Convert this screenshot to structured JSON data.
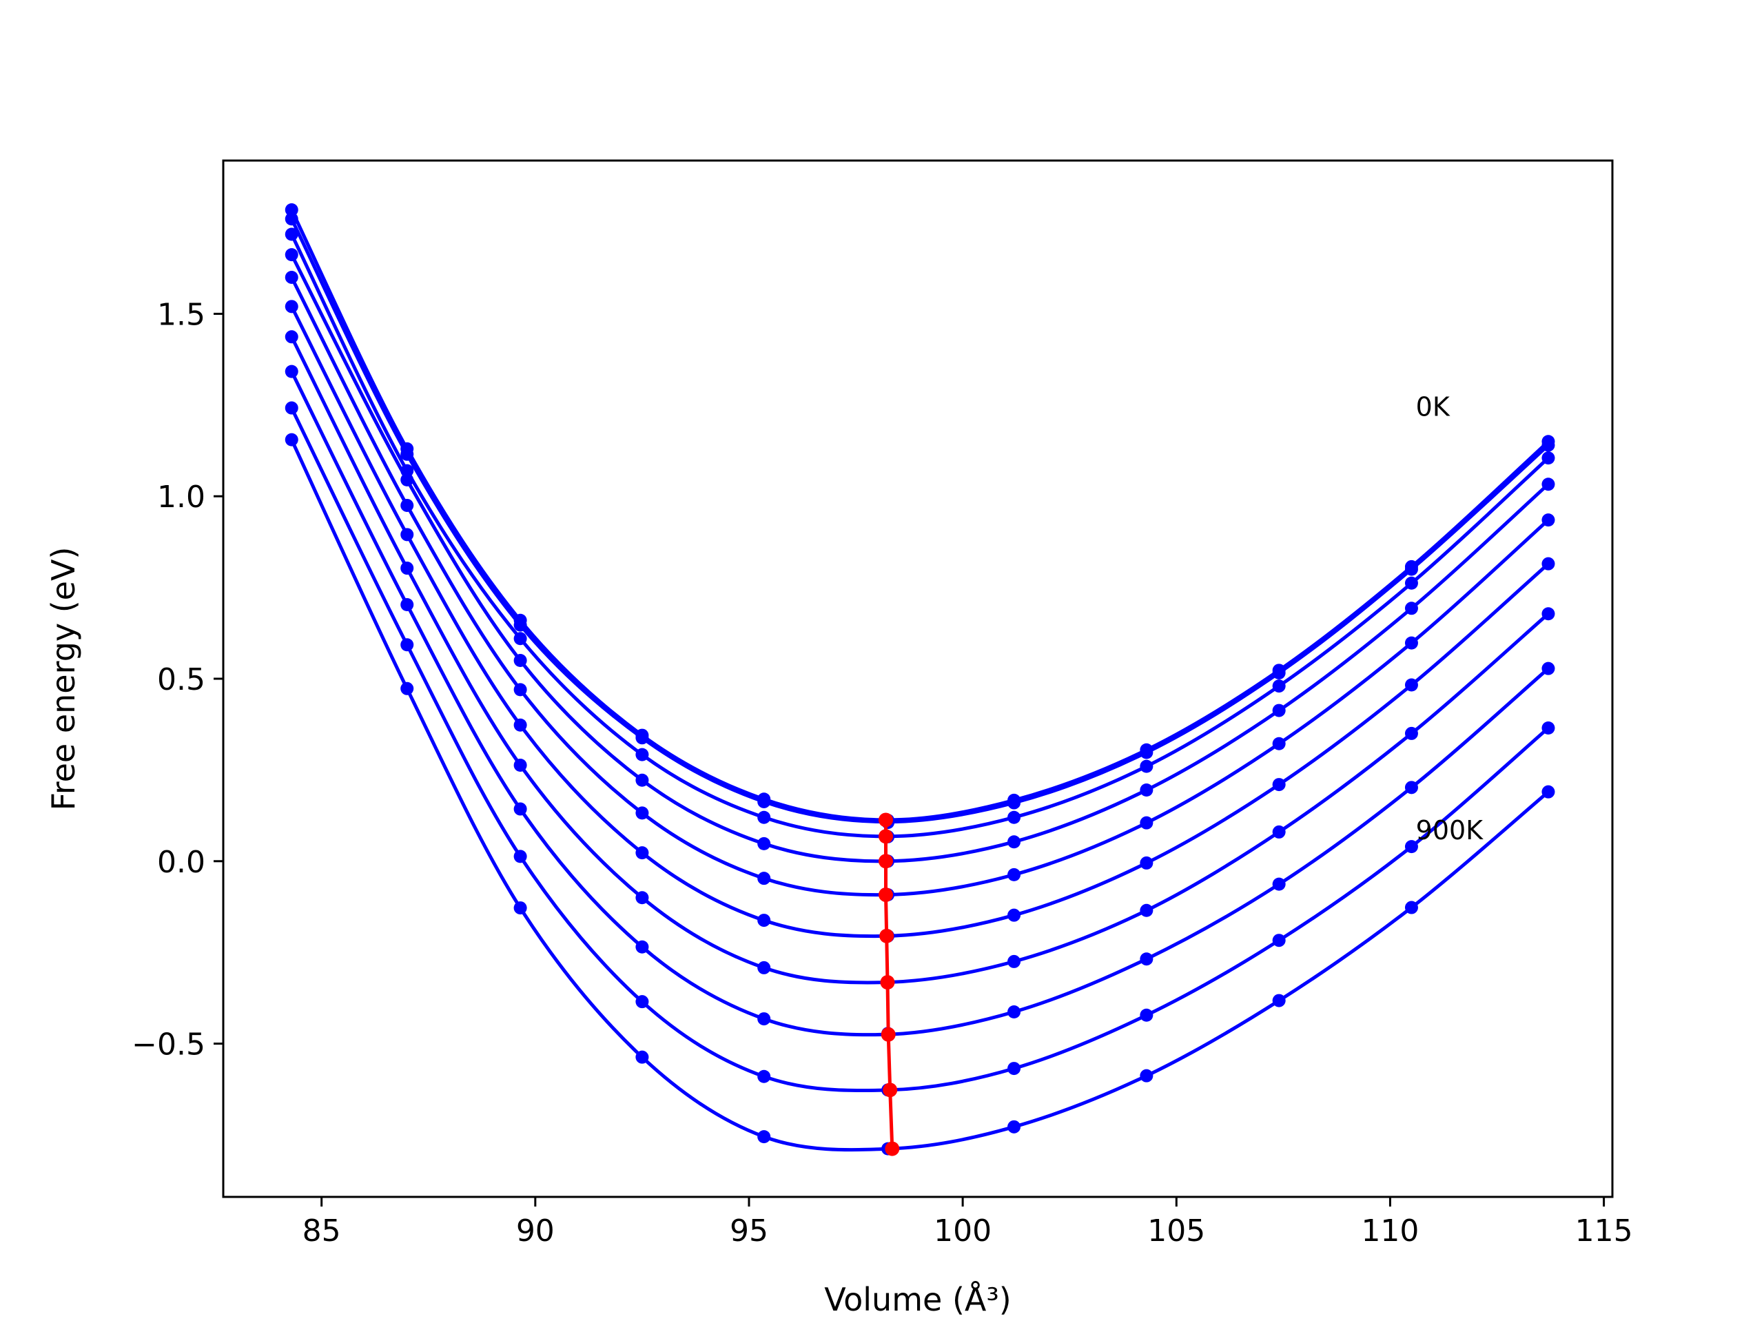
{
  "chart_data": {
    "type": "line",
    "title": "",
    "xlabel": "Volume (Å³)",
    "ylabel": "Free energy (eV)",
    "xlim": [
      82.7,
      115.2
    ],
    "ylim": [
      -0.92,
      1.92
    ],
    "x_ticks": [
      85,
      90,
      95,
      100,
      105,
      110,
      115
    ],
    "y_ticks": [
      -0.5,
      0.0,
      0.5,
      1.0,
      1.5
    ],
    "x_tick_labels": [
      "85",
      "90",
      "95",
      "100",
      "105",
      "110",
      "115"
    ],
    "y_tick_labels": [
      "−0.5",
      "0.0",
      "0.5",
      "1.0",
      "1.5"
    ],
    "grid": false,
    "legend": "none",
    "annotations": [
      {
        "text": "0K",
        "x": 110.6,
        "y": 1.22
      },
      {
        "text": "900K",
        "x": 110.6,
        "y": 0.06
      }
    ],
    "volumes": [
      84.3,
      87.0,
      89.65,
      92.5,
      95.35,
      98.25,
      101.2,
      104.3,
      107.4,
      110.5,
      113.7
    ],
    "series": [
      {
        "color": "#0000ff",
        "curve_min": [
          98.2,
          0.113
        ],
        "energies": [
          1.785,
          1.13,
          0.66,
          0.345,
          0.17,
          0.112,
          0.167,
          0.305,
          0.523,
          0.807,
          1.15
        ]
      },
      {
        "color": "#0000ff",
        "curve_min": [
          98.2,
          0.108
        ],
        "energies": [
          1.76,
          1.115,
          0.647,
          0.338,
          0.163,
          0.106,
          0.16,
          0.298,
          0.516,
          0.8,
          1.14
        ]
      },
      {
        "color": "#0000ff",
        "curve_min": [
          98.2,
          0.068
        ],
        "energies": [
          1.718,
          1.07,
          0.61,
          0.292,
          0.12,
          0.067,
          0.12,
          0.26,
          0.48,
          0.762,
          1.105
        ]
      },
      {
        "color": "#0000ff",
        "curve_min": [
          98.2,
          0.0
        ],
        "energies": [
          1.662,
          1.045,
          0.55,
          0.222,
          0.048,
          0.0,
          0.053,
          0.195,
          0.413,
          0.693,
          1.033
        ]
      },
      {
        "color": "#0000ff",
        "curve_min": [
          98.2,
          -0.092
        ],
        "energies": [
          1.6,
          0.975,
          0.47,
          0.132,
          -0.047,
          -0.092,
          -0.037,
          0.105,
          0.322,
          0.598,
          0.935
        ]
      },
      {
        "color": "#0000ff",
        "curve_min": [
          98.2,
          -0.205
        ],
        "energies": [
          1.52,
          0.895,
          0.373,
          0.023,
          -0.162,
          -0.205,
          -0.148,
          -0.005,
          0.21,
          0.483,
          0.815
        ]
      },
      {
        "color": "#0000ff",
        "curve_min": [
          98.2,
          -0.332
        ],
        "energies": [
          1.437,
          0.803,
          0.263,
          -0.1,
          -0.292,
          -0.332,
          -0.275,
          -0.135,
          0.08,
          0.35,
          0.678
        ]
      },
      {
        "color": "#0000ff",
        "curve_min": [
          98.2,
          -0.475
        ],
        "energies": [
          1.342,
          0.703,
          0.143,
          -0.235,
          -0.432,
          -0.472,
          -0.413,
          -0.268,
          -0.063,
          0.202,
          0.528
        ]
      },
      {
        "color": "#0000ff",
        "curve_min": [
          98.3,
          -0.627
        ],
        "energies": [
          1.242,
          0.593,
          0.013,
          -0.385,
          -0.59,
          -0.627,
          -0.568,
          -0.422,
          -0.217,
          0.04,
          0.365
        ]
      },
      {
        "color": "#0000ff",
        "curve_min": [
          98.3,
          -0.788
        ],
        "energies": [
          1.155,
          0.473,
          -0.128,
          -0.537,
          -0.755,
          -0.788,
          -0.728,
          -0.588,
          -0.382,
          -0.127,
          0.19
        ]
      }
    ],
    "minima_line": {
      "color": "#ff0000",
      "points": [
        [
          98.2,
          0.113
        ],
        [
          98.2,
          0.068
        ],
        [
          98.2,
          0.0
        ],
        [
          98.2,
          -0.092
        ],
        [
          98.22,
          -0.205
        ],
        [
          98.24,
          -0.332
        ],
        [
          98.26,
          -0.475
        ],
        [
          98.3,
          -0.627
        ],
        [
          98.35,
          -0.788
        ]
      ]
    }
  }
}
